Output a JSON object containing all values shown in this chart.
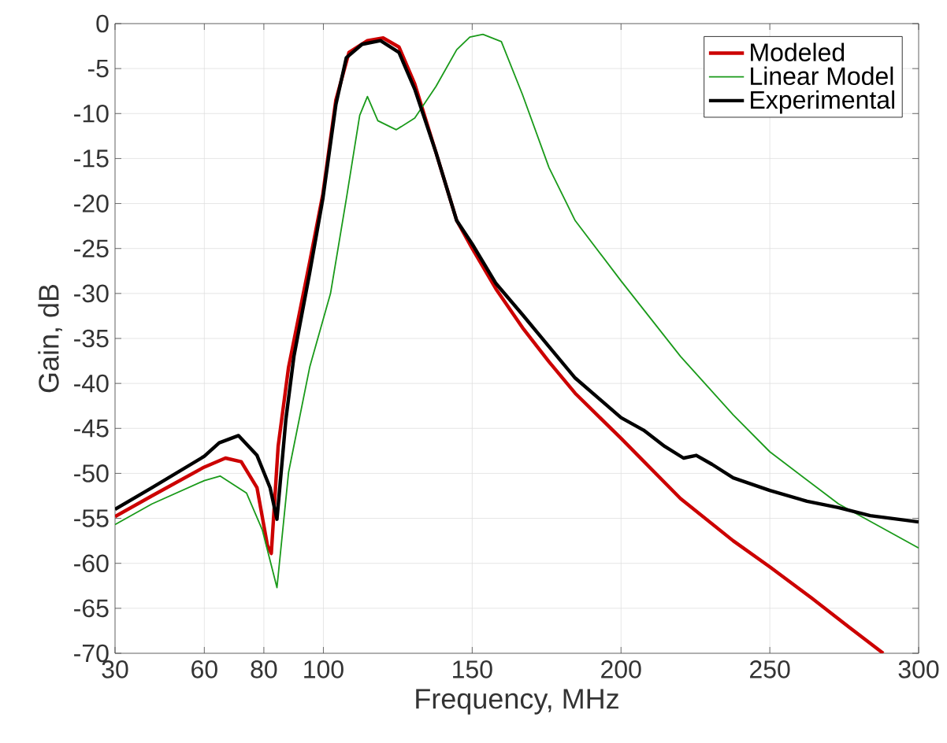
{
  "chart_data": {
    "type": "line",
    "xlabel": "Frequency, MHz",
    "ylabel": "Gain, dB",
    "xlim": [
      30,
      300
    ],
    "xticks": [
      30,
      60,
      80,
      100,
      150,
      200,
      250,
      300
    ],
    "ylim": [
      -70,
      0
    ],
    "yticks": [
      -70,
      -65,
      -60,
      -55,
      -50,
      -45,
      -40,
      -35,
      -30,
      -25,
      -20,
      -15,
      -10,
      -5,
      0
    ],
    "grid": true,
    "legend": "top right",
    "marker": "none",
    "line_style": "solid",
    "series": [
      {
        "name": "Modeled",
        "color": "#cc0000",
        "x": [
          30,
          42.4,
          60,
          67.1,
          72.4,
          77.7,
          81.2,
          82.5,
          84.8,
          88.3,
          95.4,
          99.8,
          104.2,
          108.6,
          114.8,
          120.1,
          125.4,
          130.7,
          137.8,
          144.8,
          150,
          158,
          166.9,
          175.8,
          184.6,
          200,
          220,
          237.7,
          250,
          264.2,
          276.6,
          288.1
        ],
        "values": [
          -54.8,
          -52.5,
          -49.3,
          -48.3,
          -48.7,
          -51.6,
          -58,
          -58.9,
          -47,
          -38.2,
          -26.5,
          -19,
          -8.5,
          -3.2,
          -1.9,
          -1.6,
          -2.6,
          -6.7,
          -14.3,
          -21.9,
          -25,
          -29.5,
          -33.8,
          -37.6,
          -41.1,
          -46.1,
          -52.8,
          -57.5,
          -60.4,
          -63.9,
          -67.1,
          -70
        ]
      },
      {
        "name": "Linear Model",
        "color": "#1a9a1a",
        "x": [
          30,
          42.4,
          60,
          65.3,
          74.2,
          79.5,
          84.4,
          88.3,
          95.4,
          102.4,
          107.7,
          112.2,
          114.8,
          118.3,
          124.5,
          130.7,
          137.8,
          144.8,
          149.2,
          153.6,
          159.8,
          166.9,
          175.8,
          184.6,
          200,
          220,
          237.7,
          250,
          273.1,
          300
        ],
        "values": [
          -55.7,
          -53.4,
          -50.8,
          -50.3,
          -52.2,
          -56.3,
          -62.7,
          -49.9,
          -38.2,
          -30,
          -19.5,
          -10.2,
          -8.1,
          -10.8,
          -11.8,
          -10.5,
          -7,
          -2.9,
          -1.5,
          -1.2,
          -2,
          -7.9,
          -16,
          -21.9,
          -28.6,
          -37,
          -43.5,
          -47.6,
          -53.4,
          -58.3
        ]
      },
      {
        "name": "Experimental",
        "color": "#000000",
        "x": [
          30,
          42.4,
          60,
          65,
          71.5,
          77.7,
          82.1,
          84.4,
          87.4,
          90.1,
          95.4,
          99.8,
          104.2,
          107.7,
          113,
          119.2,
          125.4,
          130.7,
          137.8,
          144.8,
          150,
          158,
          167,
          175.8,
          184.6,
          200,
          207.6,
          214.7,
          221,
          225.3,
          230.6,
          237.7,
          250,
          262.5,
          273,
          283.7,
          300
        ],
        "values": [
          -54,
          -51.6,
          -48.1,
          -46.6,
          -45.8,
          -48,
          -51.6,
          -55.1,
          -44,
          -37,
          -27.7,
          -19.5,
          -9,
          -3.8,
          -2.3,
          -1.9,
          -3.2,
          -7.3,
          -14.3,
          -21.9,
          -24.5,
          -28.9,
          -32.4,
          -35.9,
          -39.4,
          -43.8,
          -45.2,
          -47,
          -48.3,
          -48,
          -49,
          -50.5,
          -51.9,
          -53.1,
          -53.8,
          -54.7,
          -55.4
        ]
      }
    ]
  }
}
